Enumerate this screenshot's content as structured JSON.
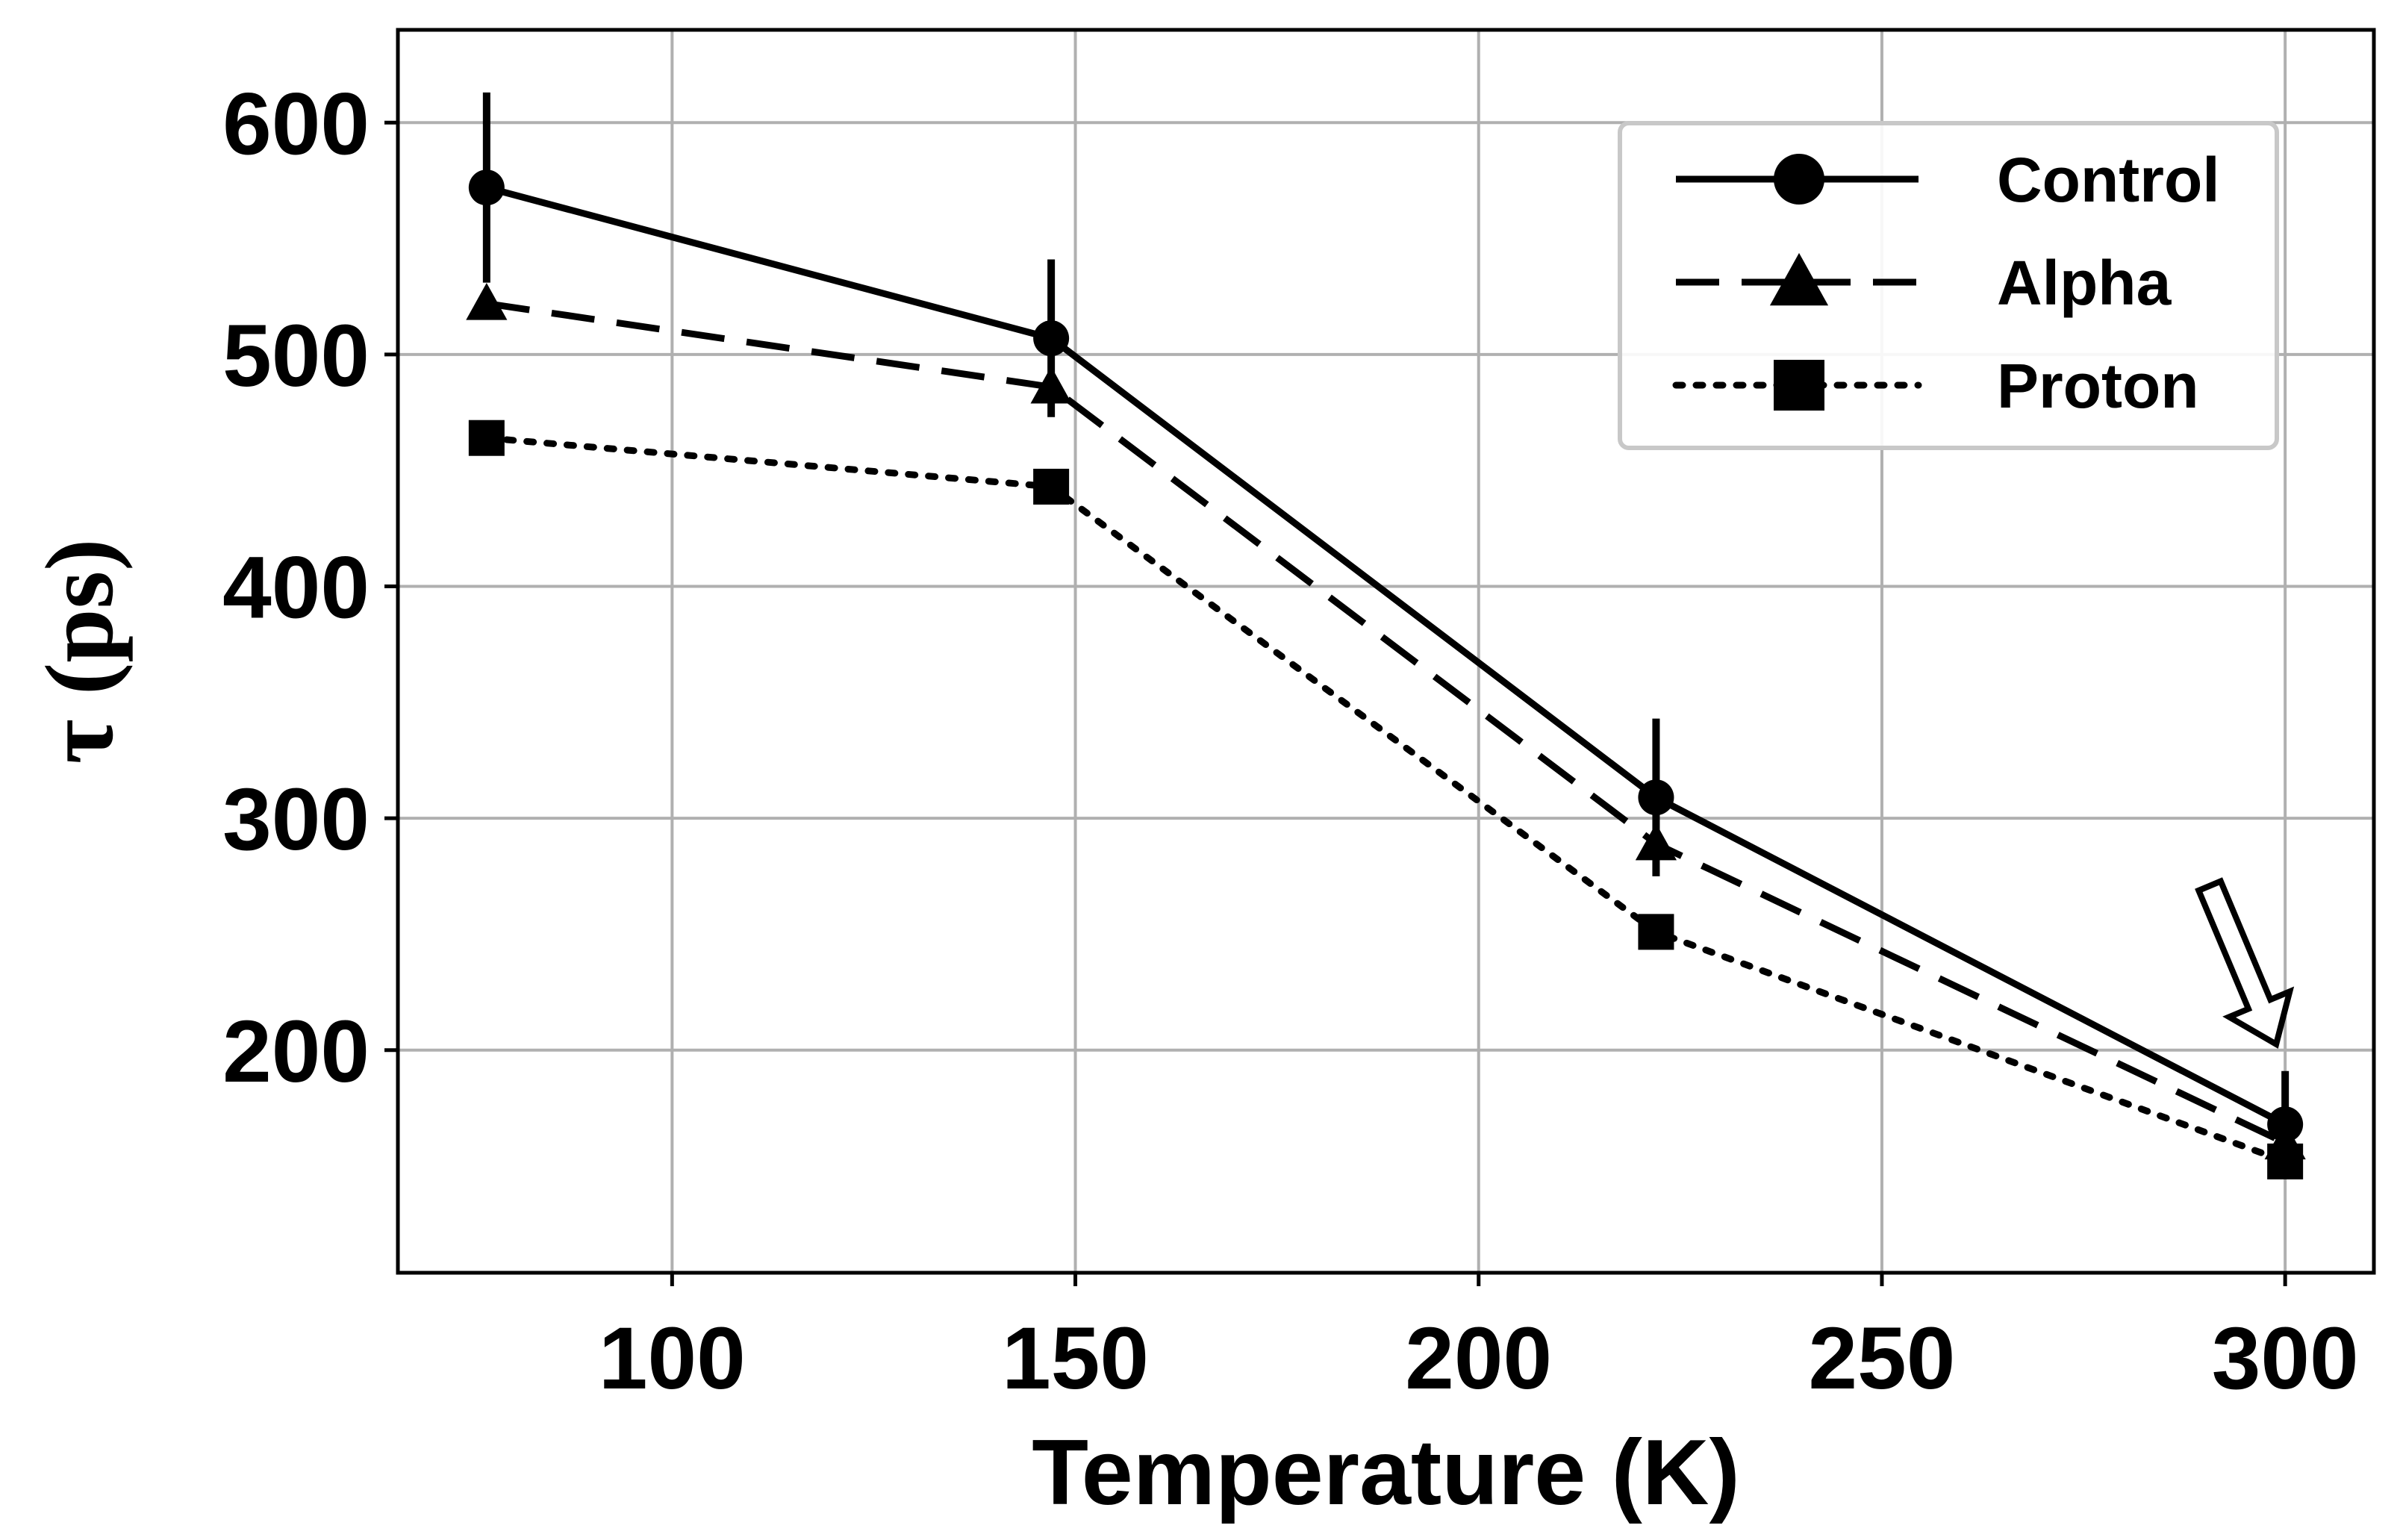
{
  "chart_data": {
    "type": "line",
    "xlabel": "Temperature (K)",
    "ylabel": "τ (ps)",
    "xlim": [
      66,
      311
    ],
    "ylim": [
      104,
      640
    ],
    "xticks": [
      100,
      150,
      200,
      250,
      300
    ],
    "yticks": [
      200,
      300,
      400,
      500,
      600
    ],
    "grid": true,
    "legend_position": "top-right",
    "series": [
      {
        "name": "Control",
        "marker": "circle",
        "linestyle": "solid",
        "x": [
          77,
          147,
          222,
          300
        ],
        "y": [
          572,
          507,
          309,
          168
        ],
        "yerr": [
          41,
          34,
          34,
          23
        ]
      },
      {
        "name": "Alpha",
        "marker": "triangle",
        "linestyle": "dashed",
        "x": [
          77,
          147,
          222,
          300
        ],
        "y": [
          522,
          486,
          289,
          160
        ],
        "yerr": [
          0,
          0,
          0,
          0
        ]
      },
      {
        "name": "Proton",
        "marker": "square",
        "linestyle": "dotted",
        "x": [
          77,
          147,
          222,
          300
        ],
        "y": [
          464,
          443,
          251,
          152
        ],
        "yerr": [
          0,
          0,
          0,
          0
        ]
      }
    ],
    "annotations": [
      {
        "type": "arrow",
        "points_to": {
          "x": 300,
          "y": 200
        }
      }
    ]
  }
}
